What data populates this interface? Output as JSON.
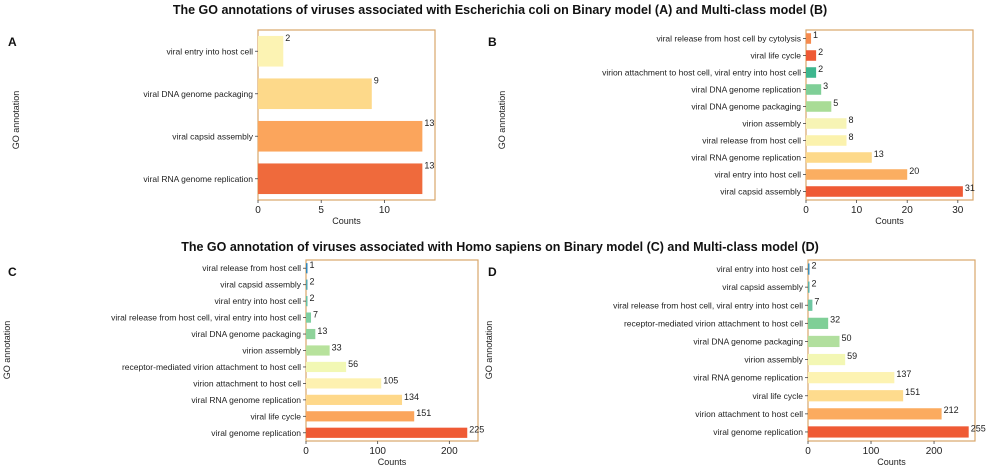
{
  "titles": {
    "top": "The GO annotations of viruses associated with Escherichia coli on Binary model (A) and Multi-class model (B)",
    "bottom": "The GO annotation of viruses associated with Homo sapiens on Binary model (C) and Multi-class model (D)"
  },
  "chart_data": [
    {
      "type": "bar",
      "orientation": "horizontal",
      "panel": "A",
      "xlabel": "Counts",
      "ylabel": "GO annotation",
      "categories": [
        "viral entry into host cell",
        "viral DNA genome packaging",
        "viral capsid assembly",
        "viral RNA genome replication"
      ],
      "values": [
        2,
        9,
        13,
        13
      ],
      "colors": [
        "#fcf3b3",
        "#fdd98a",
        "#fba55c",
        "#ef6a3c"
      ],
      "xlim": [
        0,
        14
      ],
      "xticks": [
        0,
        5,
        10
      ]
    },
    {
      "type": "bar",
      "orientation": "horizontal",
      "panel": "B",
      "xlabel": "Counts",
      "ylabel": "GO annotation",
      "categories": [
        "viral release from host cell by cytolysis",
        "viral life cycle",
        "virion attachment to host cell, viral entry into host cell",
        "viral DNA genome replication",
        "viral DNA genome packaging",
        "virion assembly",
        "viral release from host cell",
        "viral RNA genome replication",
        "viral entry into host cell",
        "viral capsid assembly"
      ],
      "values": [
        1,
        2,
        2,
        3,
        5,
        8,
        8,
        13,
        20,
        31
      ],
      "colors": [
        "#f58a4e",
        "#ef5a35",
        "#3db68e",
        "#7fcf97",
        "#a9dc96",
        "#f7f4b5",
        "#fbf2ad",
        "#fdd98a",
        "#fbae61",
        "#ef5a35"
      ],
      "xlim": [
        0,
        33
      ],
      "xticks": [
        0,
        10,
        20,
        30
      ]
    },
    {
      "type": "bar",
      "orientation": "horizontal",
      "panel": "C",
      "xlabel": "Counts",
      "ylabel": "GO annotation",
      "categories": [
        "viral release from host cell",
        "viral capsid assembly",
        "viral entry into host cell",
        "viral release from host cell, viral entry into host cell",
        "viral DNA genome packaging",
        "virion assembly",
        "receptor-mediated virion attachment to host cell",
        "virion attachment to host cell",
        "viral RNA genome replication",
        "viral life cycle",
        "viral genome replication"
      ],
      "values": [
        1,
        2,
        2,
        7,
        13,
        33,
        56,
        105,
        134,
        151,
        225
      ],
      "colors": [
        "#3288bd",
        "#55a7b0",
        "#66c2a5",
        "#7fcfa0",
        "#8ed39a",
        "#b7e29c",
        "#f2f8b4",
        "#fdf1b0",
        "#fed88a",
        "#fba55c",
        "#ef5a35"
      ],
      "xlim": [
        0,
        240
      ],
      "xticks": [
        0,
        100,
        200
      ]
    },
    {
      "type": "bar",
      "orientation": "horizontal",
      "panel": "D",
      "xlabel": "Counts",
      "ylabel": "GO annotation",
      "categories": [
        "viral entry into host cell",
        "viral capsid assembly",
        "viral release from host cell, viral entry into host cell",
        "receptor-mediated virion attachment to host cell",
        "viral DNA genome packaging",
        "virion assembly",
        "viral RNA genome replication",
        "viral life cycle",
        "virion attachment to host cell",
        "viral genome replication"
      ],
      "values": [
        2,
        2,
        7,
        32,
        50,
        59,
        137,
        151,
        212,
        255
      ],
      "colors": [
        "#3d8fb8",
        "#5db3aa",
        "#6fc6a2",
        "#7fcf97",
        "#b1df9e",
        "#f3f7b4",
        "#fdf3b2",
        "#fedb8d",
        "#fbab5f",
        "#ef5a35"
      ],
      "xlim": [
        0,
        265
      ],
      "xticks": [
        0,
        100,
        200
      ]
    }
  ],
  "panel_letters": [
    "A",
    "B",
    "C",
    "D"
  ]
}
